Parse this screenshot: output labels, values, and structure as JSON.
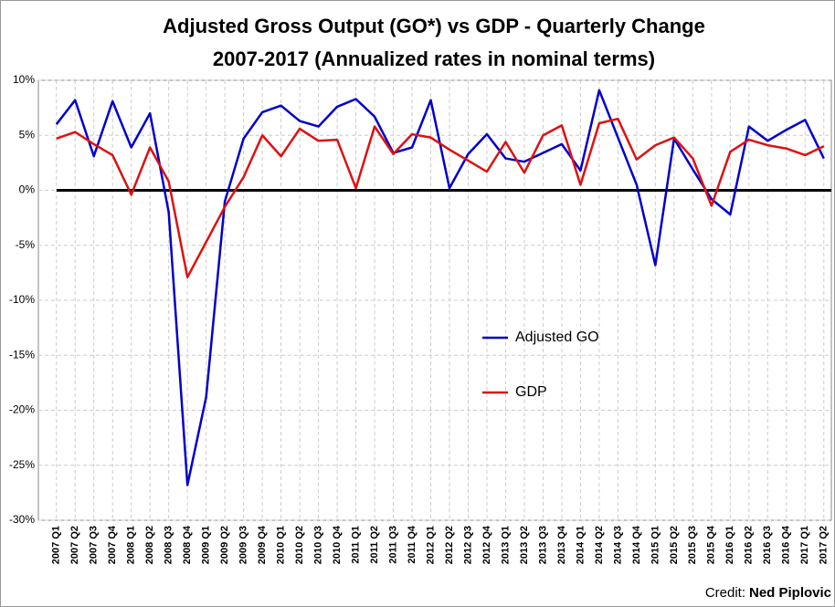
{
  "chart_data": {
    "type": "line",
    "title": [
      "Adjusted Gross Output (GO*) vs GDP - Quarterly Change",
      "2007-2017 (Annualized rates in nominal terms)"
    ],
    "credit_label": "Credit:",
    "credit_name": "Ned Piplovic",
    "categories": [
      "2007 Q1",
      "2007 Q2",
      "2007 Q3",
      "2007 Q4",
      "2008 Q1",
      "2008 Q2",
      "2008 Q3",
      "2008 Q4",
      "2009 Q1",
      "2009 Q2",
      "2009 Q3",
      "2009 Q4",
      "2010 Q1",
      "2010 Q2",
      "2010 Q3",
      "2010 Q4",
      "2011 Q1",
      "2011 Q2",
      "2011 Q3",
      "2011 Q4",
      "2012 Q1",
      "2012 Q2",
      "2012 Q3",
      "2012 Q4",
      "2013 Q1",
      "2013 Q2",
      "2013 Q3",
      "2013 Q4",
      "2014 Q1",
      "2014 Q2",
      "2014 Q3",
      "2014 Q4",
      "2015 Q1",
      "2015 Q2",
      "2015 Q3",
      "2015 Q4",
      "2016 Q1",
      "2016 Q2",
      "2016 Q3",
      "2016 Q4",
      "2017 Q1",
      "2017 Q2"
    ],
    "series": [
      {
        "name": "Adjusted GO",
        "color": "#0000cc",
        "values": [
          6.0,
          8.2,
          3.1,
          8.1,
          3.9,
          7.0,
          -2.0,
          -26.8,
          -18.8,
          -1.0,
          4.7,
          7.1,
          7.7,
          6.3,
          5.8,
          7.6,
          8.3,
          6.7,
          3.4,
          3.9,
          8.2,
          0.2,
          3.3,
          5.1,
          2.9,
          2.6,
          3.4,
          4.2,
          1.8,
          9.1,
          4.8,
          0.5,
          -6.8,
          4.7,
          1.9,
          -0.8,
          -2.2,
          5.8,
          4.5,
          5.5,
          6.4,
          2.9
        ]
      },
      {
        "name": "GDP",
        "color": "#dd1111",
        "values": [
          4.7,
          5.3,
          4.2,
          3.2,
          -0.4,
          3.9,
          0.8,
          -7.9,
          -4.7,
          -1.5,
          1.2,
          5.0,
          3.1,
          5.6,
          4.5,
          4.6,
          0.2,
          5.8,
          3.3,
          5.1,
          4.8,
          3.7,
          2.7,
          1.7,
          4.4,
          1.6,
          5.0,
          5.9,
          0.5,
          6.1,
          6.5,
          2.8,
          4.1,
          4.8,
          2.9,
          -1.4,
          3.5,
          4.6,
          4.1,
          3.8,
          3.2,
          4.0
        ]
      }
    ],
    "ylim": [
      -30,
      10
    ],
    "yticks": [
      {
        "value": -30,
        "label": "-30%"
      },
      {
        "value": -25,
        "label": "-25%"
      },
      {
        "value": -20,
        "label": "-20%"
      },
      {
        "value": -15,
        "label": "-15%"
      },
      {
        "value": -10,
        "label": "-10%"
      },
      {
        "value": -5,
        "label": "-5%"
      },
      {
        "value": 0,
        "label": "0%"
      },
      {
        "value": 5,
        "label": "5%"
      },
      {
        "value": 10,
        "label": "10%"
      }
    ],
    "grid": true
  }
}
